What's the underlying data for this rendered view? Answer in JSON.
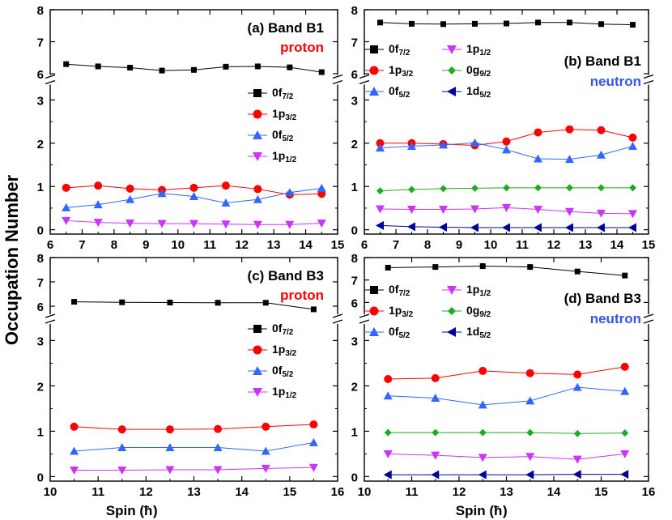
{
  "figure": {
    "ylabel": "Occupation Number",
    "xlabel_text": "Spin (",
    "xlabel_unit": "ħ",
    "xlabel_close": ")"
  },
  "orbitals": {
    "0f72": {
      "base": "0f",
      "sub": "7/2",
      "color": "#000000",
      "marker": "square"
    },
    "1p32": {
      "base": "1p",
      "sub": "3/2",
      "color": "#ff0000",
      "marker": "circle"
    },
    "0f52": {
      "base": "0f",
      "sub": "5/2",
      "color": "#3366ff",
      "marker": "triangle-up"
    },
    "1p12": {
      "base": "1p",
      "sub": "1/2",
      "color": "#cc33ff",
      "marker": "triangle-down"
    },
    "0g92": {
      "base": "0g",
      "sub": "9/2",
      "color": "#22aa22",
      "marker": "diamond"
    },
    "1d52": {
      "base": "1d",
      "sub": "5/2",
      "color": "#000099",
      "marker": "triangle-left"
    }
  },
  "chart_data": [
    {
      "type": "line",
      "id": "a",
      "title": "(a) Band B1",
      "subtitle": "proton",
      "subtitle_color": "#ff0000",
      "x": [
        6.5,
        7.5,
        8.5,
        9.5,
        10.5,
        11.5,
        12.5,
        13.5,
        14.5
      ],
      "xlim": [
        6,
        15
      ],
      "xticks": [
        6,
        7,
        8,
        9,
        10,
        11,
        12,
        13,
        14,
        15
      ],
      "upper_ylim": [
        5.9,
        8
      ],
      "upper_yticks": [
        6,
        7,
        8
      ],
      "lower_ylim": [
        -0.1,
        3.4
      ],
      "lower_yticks": [
        0,
        1,
        2,
        3
      ],
      "legend_position": "right",
      "legend": [
        "0f72",
        "1p32",
        "0f52",
        "1p12"
      ],
      "series": [
        {
          "key": "0f72",
          "values": [
            6.3,
            6.23,
            6.19,
            6.1,
            6.12,
            6.22,
            6.23,
            6.2,
            6.05
          ]
        },
        {
          "key": "1p32",
          "values": [
            0.97,
            1.02,
            0.95,
            0.92,
            0.97,
            1.02,
            0.94,
            0.81,
            0.83
          ]
        },
        {
          "key": "0f52",
          "values": [
            0.51,
            0.58,
            0.7,
            0.84,
            0.77,
            0.62,
            0.7,
            0.86,
            0.96
          ]
        },
        {
          "key": "1p12",
          "values": [
            0.21,
            0.17,
            0.15,
            0.14,
            0.14,
            0.13,
            0.12,
            0.12,
            0.15
          ]
        }
      ]
    },
    {
      "type": "line",
      "id": "b",
      "title": "(b) Band B1",
      "subtitle": "neutron",
      "subtitle_color": "#3355ee",
      "x": [
        6.5,
        7.5,
        8.5,
        9.5,
        10.5,
        11.5,
        12.5,
        13.5,
        14.5
      ],
      "xlim": [
        6,
        15
      ],
      "xticks": [
        6,
        7,
        8,
        9,
        10,
        11,
        12,
        13,
        14,
        15
      ],
      "upper_ylim": [
        5.9,
        8
      ],
      "upper_yticks": [
        6,
        7,
        8
      ],
      "lower_ylim": [
        -0.1,
        3.4
      ],
      "lower_yticks": [
        0,
        1,
        2,
        3
      ],
      "legend_position": "top-left",
      "legend": [
        "0f72",
        "1p12",
        "1p32",
        "0g92",
        "0f52",
        "1d52"
      ],
      "series": [
        {
          "key": "0f72",
          "values": [
            7.6,
            7.56,
            7.55,
            7.56,
            7.57,
            7.6,
            7.6,
            7.55,
            7.53
          ]
        },
        {
          "key": "1p32",
          "values": [
            2.0,
            2.0,
            1.98,
            1.95,
            2.04,
            2.25,
            2.32,
            2.3,
            2.13
          ]
        },
        {
          "key": "0f52",
          "values": [
            1.89,
            1.93,
            1.96,
            2.01,
            1.85,
            1.64,
            1.63,
            1.73,
            1.93
          ]
        },
        {
          "key": "0g92",
          "values": [
            0.9,
            0.93,
            0.95,
            0.96,
            0.97,
            0.97,
            0.97,
            0.97,
            0.97
          ]
        },
        {
          "key": "1p12",
          "values": [
            0.48,
            0.47,
            0.47,
            0.48,
            0.51,
            0.47,
            0.42,
            0.38,
            0.37
          ]
        },
        {
          "key": "1d52",
          "values": [
            0.1,
            0.07,
            0.06,
            0.05,
            0.05,
            0.05,
            0.05,
            0.05,
            0.05
          ]
        }
      ]
    },
    {
      "type": "line",
      "id": "c",
      "title": "(c) Band B3",
      "subtitle": "proton",
      "subtitle_color": "#ff0000",
      "x": [
        10.5,
        11.5,
        12.5,
        13.5,
        14.5,
        15.5
      ],
      "xlim": [
        10,
        16
      ],
      "xticks": [
        10,
        11,
        12,
        13,
        14,
        15,
        16
      ],
      "upper_ylim": [
        5.6,
        8
      ],
      "upper_yticks": [
        6,
        7,
        8
      ],
      "lower_ylim": [
        -0.1,
        3.4
      ],
      "lower_yticks": [
        0,
        1,
        2,
        3
      ],
      "legend_position": "right",
      "legend": [
        "0f72",
        "1p32",
        "0f52",
        "1p12"
      ],
      "series": [
        {
          "key": "0f72",
          "values": [
            6.18,
            6.16,
            6.15,
            6.14,
            6.14,
            5.87
          ]
        },
        {
          "key": "1p32",
          "values": [
            1.1,
            1.04,
            1.04,
            1.05,
            1.1,
            1.15
          ]
        },
        {
          "key": "0f52",
          "values": [
            0.56,
            0.64,
            0.64,
            0.64,
            0.56,
            0.75
          ]
        },
        {
          "key": "1p12",
          "values": [
            0.14,
            0.14,
            0.15,
            0.15,
            0.18,
            0.2
          ]
        }
      ]
    },
    {
      "type": "line",
      "id": "d",
      "title": "(d) Band B3",
      "subtitle": "neutron",
      "subtitle_color": "#3355ee",
      "x": [
        10.5,
        11.5,
        12.5,
        13.5,
        14.5,
        15.5
      ],
      "xlim": [
        10,
        16
      ],
      "xticks": [
        10,
        11,
        12,
        13,
        14,
        15,
        16
      ],
      "upper_ylim": [
        5.4,
        8
      ],
      "upper_yticks": [
        6,
        7,
        8
      ],
      "lower_ylim": [
        -0.1,
        3.4
      ],
      "lower_yticks": [
        0,
        1,
        2,
        3
      ],
      "legend_position": "top-left",
      "legend": [
        "0f72",
        "1p12",
        "1p32",
        "0g92",
        "0f52",
        "1d52"
      ],
      "series": [
        {
          "key": "0f72",
          "values": [
            7.55,
            7.58,
            7.62,
            7.58,
            7.38,
            7.2
          ]
        },
        {
          "key": "1p32",
          "values": [
            2.15,
            2.17,
            2.33,
            2.28,
            2.25,
            2.42
          ]
        },
        {
          "key": "0f52",
          "values": [
            1.78,
            1.73,
            1.58,
            1.67,
            1.97,
            1.88
          ]
        },
        {
          "key": "0g92",
          "values": [
            0.97,
            0.97,
            0.97,
            0.97,
            0.95,
            0.96
          ]
        },
        {
          "key": "1p12",
          "values": [
            0.5,
            0.47,
            0.42,
            0.44,
            0.38,
            0.5
          ]
        },
        {
          "key": "1d52",
          "values": [
            0.04,
            0.04,
            0.04,
            0.04,
            0.05,
            0.05
          ]
        }
      ]
    }
  ]
}
